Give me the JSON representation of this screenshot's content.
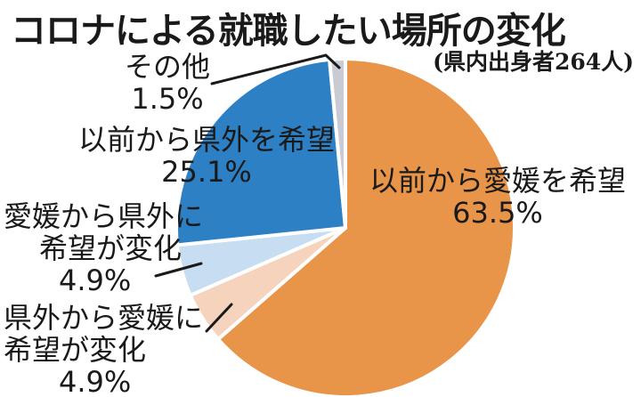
{
  "chart_data": {
    "type": "pie",
    "title": "コロナによる就職したい場所の変化",
    "subtitle": "(県内出身者264人)",
    "slices": [
      {
        "label": "以前から愛媛を希望",
        "label_lines": [
          "以前から愛媛を希望"
        ],
        "value": 63.5,
        "value_text": "63.5%",
        "color": "#e8954a"
      },
      {
        "label": "県外から愛媛に希望が変化",
        "label_lines": [
          "県外から愛媛に",
          "希望が変化"
        ],
        "value": 4.9,
        "value_text": "4.9%",
        "color": "#f5d3bc"
      },
      {
        "label": "愛媛から県外に希望が変化",
        "label_lines": [
          "愛媛から県外に",
          "希望が変化"
        ],
        "value": 4.9,
        "value_text": "4.9%",
        "color": "#c7ddf1"
      },
      {
        "label": "以前から県外を希望",
        "label_lines": [
          "以前から県外を希望"
        ],
        "value": 25.1,
        "value_text": "25.1%",
        "color": "#2d80c4"
      },
      {
        "label": "その他",
        "label_lines": [
          "その他"
        ],
        "value": 1.5,
        "value_text": "1.5%",
        "color": "#c9cad2"
      }
    ]
  }
}
